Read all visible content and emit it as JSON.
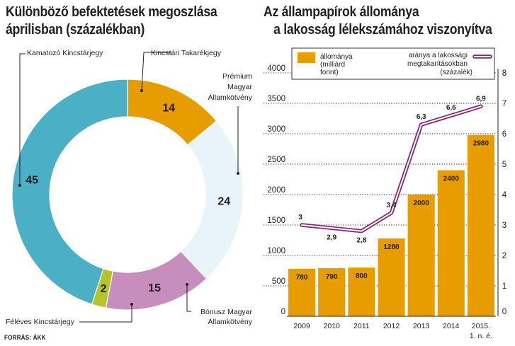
{
  "left_panel": {
    "title_line1": "Különböző befektetések megoszlása",
    "title_line2": "áprilisban (százalékban)"
  },
  "right_panel": {
    "title_line1": "Az állampapírok állománya",
    "title_line2": "a lakosság lélekszámához viszonyítva"
  },
  "source": "FORRÁS: ÁKK",
  "colors": {
    "orange": "#e79d00",
    "teal": "#4bb0c6",
    "pale_blue": "#e8f4fa",
    "mauve": "#c78dbd",
    "lime": "#b6c42a",
    "purple_line": "#8b2573"
  },
  "chart_data": [
    {
      "type": "pie",
      "variant": "donut",
      "slices": [
        {
          "label": "Kincstári Takarékjegy",
          "value": 14,
          "color": "#e79d00"
        },
        {
          "label": "Prémium Magyar Államkötvény",
          "value": 24,
          "color": "#e8f4fa"
        },
        {
          "label": "Bónusz Magyar Államkötvény",
          "value": 15,
          "color": "#c78dbd"
        },
        {
          "label": "Féléves Kincstárjegy",
          "value": 2,
          "color": "#b6c42a"
        },
        {
          "label": "Kamatozó Kincstárjegy",
          "value": 45,
          "color": "#4bb0c6"
        }
      ],
      "callouts": {
        "takarek": "Kincstári Takarékjegy",
        "premium": [
          "Prémium",
          "Magyar",
          "Államkötvény"
        ],
        "bonusz": [
          "Bónusz Magyar",
          "Államkötvény"
        ],
        "feleves": "Féléves Kincstárjegy",
        "kamatozo": "Kamatozó Kincstárjegy"
      }
    },
    {
      "type": "bar",
      "categories": [
        "2009",
        "2010",
        "2011",
        "2012",
        "2013",
        "2014",
        "2015."
      ],
      "category_sublabel": "1. n. é.",
      "series": [
        {
          "name": "állománya (milliárd forint)",
          "legend_lines": [
            "állománya",
            "(milliárd",
            "forint)"
          ],
          "type": "bar",
          "color": "#e79d00",
          "axis": "left",
          "values": [
            780,
            790,
            800,
            1280,
            2000,
            2400,
            2980
          ]
        },
        {
          "name": "aránya a lakossági megtakarításokban (százalék)",
          "legend_lines": [
            "aránya a lakossági",
            "megtakarításokban",
            "(százalék)"
          ],
          "type": "line",
          "color": "#8b2573",
          "axis": "right",
          "values": [
            3,
            2.9,
            2.8,
            3.4,
            6.3,
            6.6,
            6.9
          ],
          "value_labels": [
            "3",
            "2,9",
            "2,8",
            "3,4",
            "6,3",
            "6,6",
            "6,9"
          ]
        }
      ],
      "ylim_left": [
        0,
        4000
      ],
      "yticks_left": [
        0,
        500,
        1000,
        1500,
        2000,
        2500,
        3000,
        3500,
        4000
      ],
      "ylim_right": [
        0,
        8
      ],
      "yticks_right": [
        0,
        1,
        2,
        3,
        4,
        5,
        6,
        7,
        8
      ],
      "grid": "dotted horizontal",
      "legend_position": "top"
    }
  ]
}
